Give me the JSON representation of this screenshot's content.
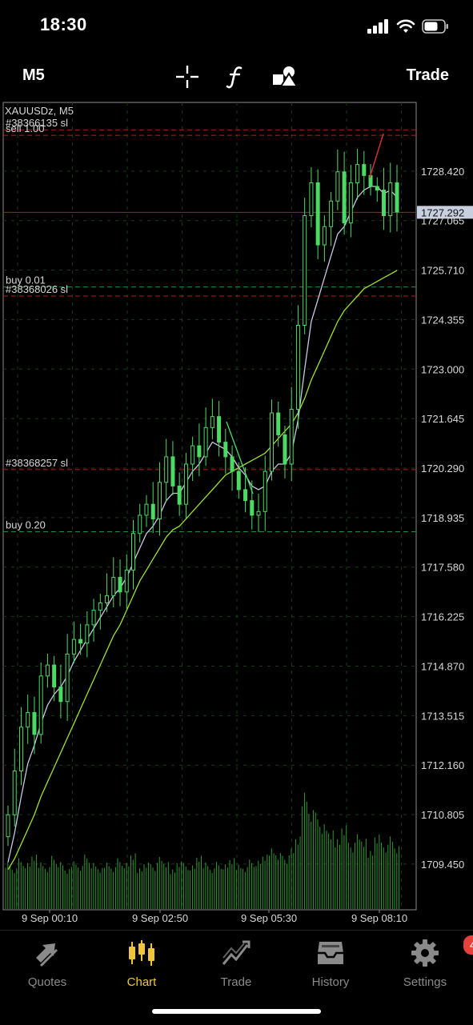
{
  "status_bar": {
    "time": "18:30"
  },
  "toolbar": {
    "timeframe": "M5",
    "trade_label": "Trade",
    "icons": [
      "crosshair-icon",
      "function-icon",
      "shapes-icon"
    ]
  },
  "chart": {
    "symbol_label": "XAUUSDz, M5",
    "current_price": "1727.292",
    "price_ticks": [
      "1728.420",
      "1727.065",
      "1725.710",
      "1724.355",
      "1723.000",
      "1721.645",
      "1720.290",
      "1718.935",
      "1717.580",
      "1716.225",
      "1714.870",
      "1713.515",
      "1712.160",
      "1710.805",
      "1709.450"
    ],
    "time_ticks": [
      "9 Sep 00:10",
      "9 Sep 02:50",
      "9 Sep 05:30",
      "9 Sep 08:10"
    ],
    "order_lines": [
      {
        "label": "#38366135 sl",
        "price": 1729.55,
        "color": "#b02020"
      },
      {
        "label": "sell 1.00",
        "price": 1729.4,
        "color": "#b02020"
      },
      {
        "label": "buy 0.01",
        "price": 1725.25,
        "color": "#1f8a3a"
      },
      {
        "label": "#38368026 sl",
        "price": 1725.0,
        "color": "#b02020"
      },
      {
        "label": "#38368257 sl",
        "price": 1720.25,
        "color": "#b02020"
      },
      {
        "label": "buy 0.20",
        "price": 1718.55,
        "color": "#1f8a3a"
      }
    ],
    "colors": {
      "candle": "#4cd964",
      "fast_ma": "#c8c8e8",
      "slow_ma": "#9be32a",
      "grid": "#1a3a1a",
      "volume": "#2e9a2e",
      "price_line": "#a82020"
    }
  },
  "chart_data": {
    "type": "candlestick",
    "y_range": [
      1708.2,
      1730.3
    ],
    "close_series": [
      1710.8,
      1712.0,
      1713.2,
      1713.6,
      1713.0,
      1714.6,
      1714.9,
      1714.3,
      1713.9,
      1715.2,
      1715.6,
      1715.5,
      1716.0,
      1716.4,
      1716.6,
      1716.8,
      1717.3,
      1716.9,
      1717.5,
      1718.5,
      1719.0,
      1719.3,
      1718.9,
      1719.9,
      1720.6,
      1719.8,
      1719.3,
      1720.4,
      1720.9,
      1720.6,
      1721.4,
      1721.7,
      1721.0,
      1720.6,
      1720.2,
      1719.7,
      1719.4,
      1719.0,
      1719.1,
      1720.2,
      1721.8,
      1721.2,
      1720.4,
      1721.9,
      1724.2,
      1727.2,
      1728.1,
      1726.4,
      1726.9,
      1727.6,
      1728.4,
      1727.0,
      1728.1,
      1728.6,
      1728.3,
      1728.0,
      1727.9,
      1727.2,
      1728.1,
      1727.3
    ],
    "fast_ma": [
      1709.5,
      1710.3,
      1711.3,
      1712.2,
      1712.7,
      1713.3,
      1713.8,
      1714.1,
      1714.3,
      1714.6,
      1715.0,
      1715.3,
      1715.6,
      1715.9,
      1716.2,
      1716.5,
      1716.8,
      1717.0,
      1717.3,
      1717.7,
      1718.1,
      1718.5,
      1718.7,
      1719.0,
      1719.4,
      1719.6,
      1719.6,
      1719.9,
      1720.2,
      1720.4,
      1720.7,
      1721.0,
      1720.9,
      1720.8,
      1720.6,
      1720.3,
      1720.1,
      1719.8,
      1719.7,
      1719.8,
      1720.2,
      1720.4,
      1720.4,
      1720.7,
      1721.6,
      1723.0,
      1724.3,
      1724.9,
      1725.5,
      1726.1,
      1726.7,
      1726.9,
      1727.3,
      1727.7,
      1727.9,
      1728.0,
      1728.0,
      1727.8,
      1727.9,
      1727.7
    ],
    "slow_ma": [
      1709.3,
      1709.6,
      1710.0,
      1710.4,
      1710.8,
      1711.3,
      1711.7,
      1712.1,
      1712.5,
      1712.9,
      1713.3,
      1713.7,
      1714.1,
      1714.5,
      1714.9,
      1715.3,
      1715.7,
      1716.0,
      1716.4,
      1716.8,
      1717.2,
      1717.5,
      1717.8,
      1718.1,
      1718.4,
      1718.6,
      1718.7,
      1718.9,
      1719.1,
      1719.3,
      1719.5,
      1719.7,
      1719.9,
      1720.1,
      1720.2,
      1720.3,
      1720.4,
      1720.5,
      1720.6,
      1720.7,
      1720.9,
      1721.1,
      1721.3,
      1721.5,
      1721.8,
      1722.2,
      1722.7,
      1723.1,
      1723.5,
      1723.9,
      1724.3,
      1724.6,
      1724.8,
      1725.0,
      1725.2,
      1725.3,
      1725.4,
      1725.5,
      1725.6,
      1725.7
    ],
    "volume": [
      0.4,
      0.35,
      0.42,
      0.38,
      0.45,
      0.4,
      0.36,
      0.44,
      0.39,
      0.33,
      0.41,
      0.37,
      0.45,
      0.38,
      0.34,
      0.4,
      0.36,
      0.42,
      0.38,
      0.46,
      0.35,
      0.4,
      0.37,
      0.43,
      0.39,
      0.34,
      0.41,
      0.38,
      0.36,
      0.44,
      0.4,
      0.35,
      0.39,
      0.37,
      0.42,
      0.38,
      0.36,
      0.41,
      0.4,
      0.45,
      0.52,
      0.48,
      0.44,
      0.5,
      0.6,
      1.0,
      0.85,
      0.8,
      0.7,
      0.65,
      0.6,
      0.72,
      0.55,
      0.62,
      0.58,
      0.5,
      0.64,
      0.55,
      0.6,
      0.52
    ]
  },
  "tabbar": {
    "items": [
      {
        "label": "Quotes",
        "icon": "quotes-icon"
      },
      {
        "label": "Chart",
        "icon": "chart-icon"
      },
      {
        "label": "Trade",
        "icon": "trade-icon"
      },
      {
        "label": "History",
        "icon": "history-icon"
      },
      {
        "label": "Settings",
        "icon": "settings-icon"
      }
    ],
    "active": "Chart",
    "settings_badge": "4"
  }
}
